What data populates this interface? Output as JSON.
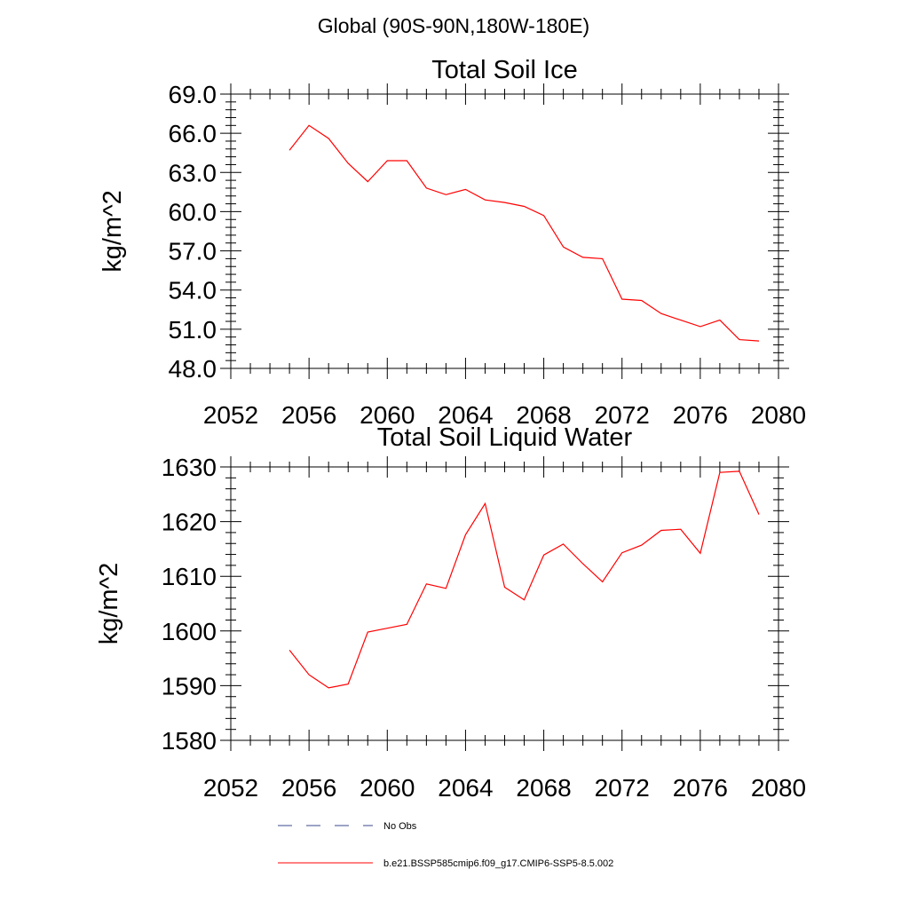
{
  "page": {
    "region_title": "Global (90S-90N,180W-180E)"
  },
  "legend": {
    "entries": [
      {
        "label": "No Obs",
        "style": "dashed",
        "color": "#3b4a8c"
      },
      {
        "label": "b.e21.BSSP585cmip6.f09_g17.CMIP6-SSP5-8.5.002",
        "style": "solid",
        "color": "#ff0000"
      }
    ]
  },
  "chart_data": [
    {
      "type": "line",
      "title": "Total Soil Ice",
      "xlabel": "",
      "ylabel": "kg/m^2",
      "xlim": [
        2052,
        2080
      ],
      "ylim": [
        48.0,
        69.0
      ],
      "xticks": [
        "2052",
        "2056",
        "2060",
        "2064",
        "2068",
        "2072",
        "2076",
        "2080"
      ],
      "yticks": [
        "48.0",
        "51.0",
        "54.0",
        "57.0",
        "60.0",
        "63.0",
        "66.0",
        "69.0"
      ],
      "series": [
        {
          "name": "b.e21.BSSP585cmip6.f09_g17.CMIP6-SSP5-8.5.002",
          "color": "#ff0000",
          "x": [
            2055,
            2056,
            2057,
            2058,
            2059,
            2060,
            2061,
            2062,
            2063,
            2064,
            2065,
            2066,
            2067,
            2068,
            2069,
            2070,
            2071,
            2072,
            2073,
            2074,
            2075,
            2076,
            2077,
            2078,
            2079
          ],
          "y": [
            64.7,
            66.6,
            65.6,
            63.7,
            62.3,
            63.9,
            63.9,
            61.8,
            61.3,
            61.7,
            60.9,
            60.7,
            60.4,
            59.7,
            57.3,
            56.5,
            56.4,
            53.3,
            53.2,
            52.2,
            51.7,
            51.2,
            51.7,
            50.2,
            50.1
          ]
        }
      ]
    },
    {
      "type": "line",
      "title": "Total Soil Liquid Water",
      "xlabel": "",
      "ylabel": "kg/m^2",
      "xlim": [
        2052,
        2080
      ],
      "ylim": [
        1580,
        1630
      ],
      "xticks": [
        "2052",
        "2056",
        "2060",
        "2064",
        "2068",
        "2072",
        "2076",
        "2080"
      ],
      "yticks": [
        "1580",
        "1590",
        "1600",
        "1610",
        "1620",
        "1630"
      ],
      "series": [
        {
          "name": "b.e21.BSSP585cmip6.f09_g17.CMIP6-SSP5-8.5.002",
          "color": "#ff0000",
          "x": [
            2055,
            2056,
            2057,
            2058,
            2059,
            2060,
            2061,
            2062,
            2063,
            2064,
            2065,
            2066,
            2067,
            2068,
            2069,
            2070,
            2071,
            2072,
            2073,
            2074,
            2075,
            2076,
            2077,
            2078,
            2079
          ],
          "y": [
            1596.5,
            1592.0,
            1589.6,
            1590.3,
            1599.8,
            1600.5,
            1601.2,
            1608.6,
            1607.8,
            1617.6,
            1623.3,
            1608.0,
            1605.7,
            1613.9,
            1615.9,
            1612.3,
            1609.0,
            1614.3,
            1615.7,
            1618.4,
            1618.6,
            1614.2,
            1629.0,
            1629.2,
            1621.3
          ]
        }
      ]
    }
  ]
}
